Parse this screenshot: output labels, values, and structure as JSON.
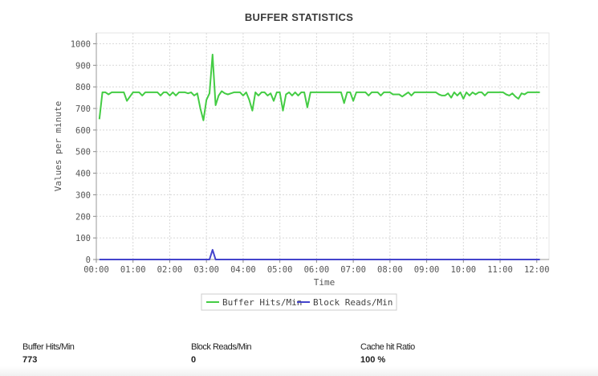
{
  "chart_data": {
    "type": "line",
    "title": "BUFFER STATISTICS",
    "xlabel": "Time",
    "ylabel": "Values per minute",
    "xlim": [
      "00:00",
      "12:20"
    ],
    "ylim": [
      0,
      1050
    ],
    "x_ticks": [
      "00:00",
      "01:00",
      "02:00",
      "03:00",
      "04:00",
      "05:00",
      "06:00",
      "07:00",
      "08:00",
      "09:00",
      "10:00",
      "11:00",
      "12:00"
    ],
    "y_ticks": [
      0,
      100,
      200,
      300,
      400,
      500,
      600,
      700,
      800,
      900,
      1000
    ],
    "grid": true,
    "legend": "bottom-center",
    "series": [
      {
        "name": "Buffer Hits/Min",
        "color": "#44cc44",
        "points": [
          [
            "00:05",
            650
          ],
          [
            "00:10",
            775
          ],
          [
            "00:15",
            775
          ],
          [
            "00:20",
            765
          ],
          [
            "00:25",
            775
          ],
          [
            "00:30",
            775
          ],
          [
            "00:35",
            775
          ],
          [
            "00:40",
            775
          ],
          [
            "00:45",
            775
          ],
          [
            "00:50",
            735
          ],
          [
            "00:55",
            755
          ],
          [
            "01:00",
            775
          ],
          [
            "01:05",
            775
          ],
          [
            "01:10",
            775
          ],
          [
            "01:15",
            760
          ],
          [
            "01:20",
            775
          ],
          [
            "01:25",
            775
          ],
          [
            "01:30",
            775
          ],
          [
            "01:35",
            775
          ],
          [
            "01:40",
            775
          ],
          [
            "01:45",
            760
          ],
          [
            "01:50",
            775
          ],
          [
            "01:55",
            775
          ],
          [
            "02:00",
            760
          ],
          [
            "02:05",
            775
          ],
          [
            "02:10",
            760
          ],
          [
            "02:15",
            775
          ],
          [
            "02:20",
            775
          ],
          [
            "02:25",
            775
          ],
          [
            "02:30",
            770
          ],
          [
            "02:35",
            775
          ],
          [
            "02:40",
            760
          ],
          [
            "02:45",
            770
          ],
          [
            "02:50",
            700
          ],
          [
            "02:55",
            645
          ],
          [
            "03:00",
            740
          ],
          [
            "03:05",
            770
          ],
          [
            "03:10",
            950
          ],
          [
            "03:15",
            715
          ],
          [
            "03:20",
            760
          ],
          [
            "03:25",
            780
          ],
          [
            "03:30",
            770
          ],
          [
            "03:35",
            765
          ],
          [
            "03:40",
            770
          ],
          [
            "03:45",
            775
          ],
          [
            "03:50",
            775
          ],
          [
            "03:55",
            775
          ],
          [
            "04:00",
            760
          ],
          [
            "04:05",
            775
          ],
          [
            "04:10",
            740
          ],
          [
            "04:15",
            690
          ],
          [
            "04:20",
            775
          ],
          [
            "04:25",
            760
          ],
          [
            "04:30",
            775
          ],
          [
            "04:35",
            775
          ],
          [
            "04:40",
            760
          ],
          [
            "04:45",
            770
          ],
          [
            "04:50",
            735
          ],
          [
            "04:55",
            775
          ],
          [
            "05:00",
            775
          ],
          [
            "05:05",
            690
          ],
          [
            "05:10",
            765
          ],
          [
            "05:15",
            775
          ],
          [
            "05:20",
            760
          ],
          [
            "05:25",
            775
          ],
          [
            "05:30",
            760
          ],
          [
            "05:35",
            775
          ],
          [
            "05:40",
            775
          ],
          [
            "05:45",
            705
          ],
          [
            "05:50",
            775
          ],
          [
            "05:55",
            775
          ],
          [
            "06:00",
            775
          ],
          [
            "06:05",
            775
          ],
          [
            "06:10",
            775
          ],
          [
            "06:15",
            775
          ],
          [
            "06:20",
            775
          ],
          [
            "06:25",
            775
          ],
          [
            "06:30",
            775
          ],
          [
            "06:35",
            775
          ],
          [
            "06:40",
            775
          ],
          [
            "06:45",
            725
          ],
          [
            "06:50",
            775
          ],
          [
            "06:55",
            775
          ],
          [
            "07:00",
            735
          ],
          [
            "07:05",
            775
          ],
          [
            "07:10",
            775
          ],
          [
            "07:15",
            775
          ],
          [
            "07:20",
            775
          ],
          [
            "07:25",
            760
          ],
          [
            "07:30",
            775
          ],
          [
            "07:35",
            775
          ],
          [
            "07:40",
            775
          ],
          [
            "07:45",
            760
          ],
          [
            "07:50",
            775
          ],
          [
            "07:55",
            775
          ],
          [
            "08:00",
            775
          ],
          [
            "08:05",
            765
          ],
          [
            "08:10",
            765
          ],
          [
            "08:15",
            765
          ],
          [
            "08:20",
            755
          ],
          [
            "08:25",
            765
          ],
          [
            "08:30",
            775
          ],
          [
            "08:35",
            760
          ],
          [
            "08:40",
            775
          ],
          [
            "08:45",
            775
          ],
          [
            "08:50",
            775
          ],
          [
            "08:55",
            775
          ],
          [
            "09:00",
            775
          ],
          [
            "09:05",
            775
          ],
          [
            "09:10",
            775
          ],
          [
            "09:15",
            775
          ],
          [
            "09:20",
            765
          ],
          [
            "09:25",
            760
          ],
          [
            "09:30",
            760
          ],
          [
            "09:35",
            770
          ],
          [
            "09:40",
            750
          ],
          [
            "09:45",
            775
          ],
          [
            "09:50",
            760
          ],
          [
            "09:55",
            775
          ],
          [
            "10:00",
            745
          ],
          [
            "10:05",
            775
          ],
          [
            "10:10",
            760
          ],
          [
            "10:15",
            775
          ],
          [
            "10:20",
            765
          ],
          [
            "10:25",
            775
          ],
          [
            "10:30",
            775
          ],
          [
            "10:35",
            760
          ],
          [
            "10:40",
            775
          ],
          [
            "10:45",
            775
          ],
          [
            "10:50",
            775
          ],
          [
            "10:55",
            775
          ],
          [
            "11:00",
            775
          ],
          [
            "11:05",
            775
          ],
          [
            "11:10",
            765
          ],
          [
            "11:15",
            760
          ],
          [
            "11:20",
            770
          ],
          [
            "11:25",
            755
          ],
          [
            "11:30",
            745
          ],
          [
            "11:35",
            770
          ],
          [
            "11:40",
            765
          ],
          [
            "11:45",
            775
          ],
          [
            "11:50",
            775
          ],
          [
            "11:55",
            775
          ],
          [
            "12:00",
            775
          ],
          [
            "12:05",
            775
          ]
        ]
      },
      {
        "name": "Block Reads/Min",
        "color": "#4444cc",
        "points": [
          [
            "00:05",
            0
          ],
          [
            "03:00",
            0
          ],
          [
            "03:05",
            0
          ],
          [
            "03:10",
            45
          ],
          [
            "03:15",
            0
          ],
          [
            "12:05",
            0
          ]
        ]
      }
    ]
  },
  "stats": [
    {
      "label": "Buffer Hits/Min",
      "value": "773"
    },
    {
      "label": "Block Reads/Min",
      "value": "0"
    },
    {
      "label": "Cache hit Ratio",
      "value": "100 %"
    }
  ]
}
